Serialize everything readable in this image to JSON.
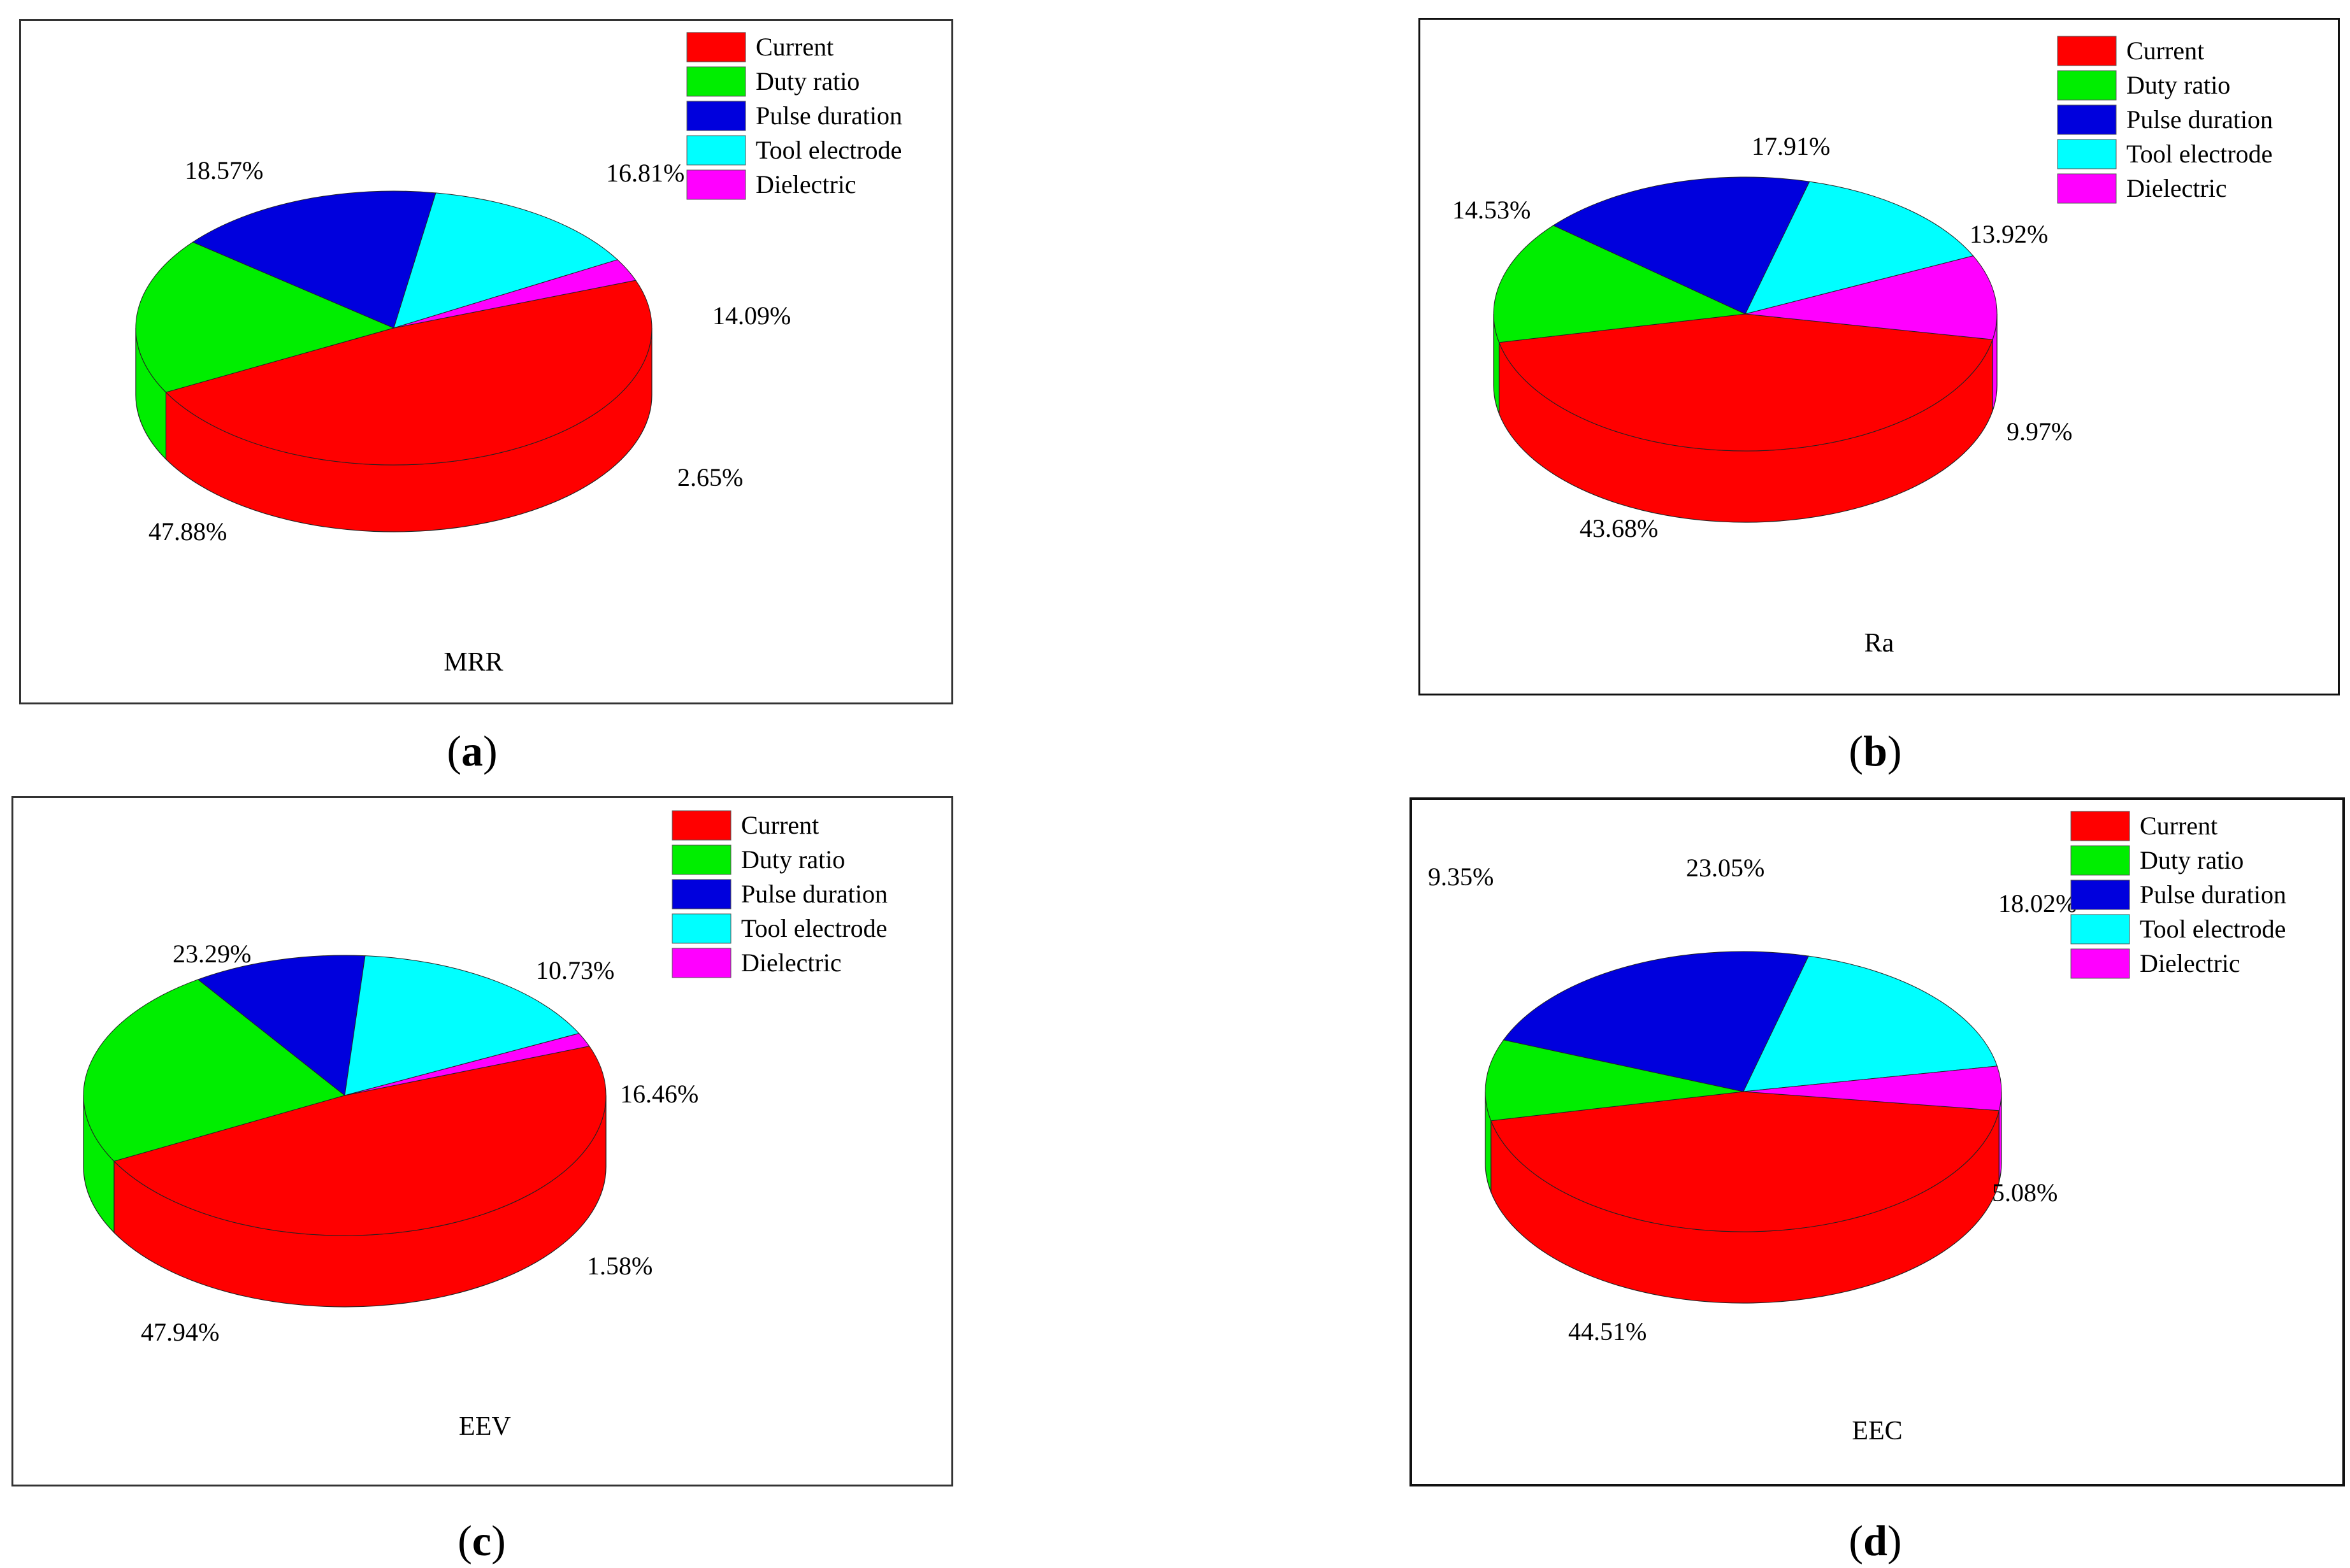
{
  "legend": {
    "entries": [
      {
        "label": "Current",
        "color": "#ff0000"
      },
      {
        "label": "Duty ratio",
        "color": "#00ee00"
      },
      {
        "label": "Pulse duration",
        "color": "#0000dd"
      },
      {
        "label": "Tool electrode",
        "color": "#00ffff"
      },
      {
        "label": "Dielectric",
        "color": "#ff00ff"
      }
    ]
  },
  "chart_data": [
    {
      "type": "pie",
      "panel": "a",
      "title": "MRR",
      "categories": [
        "Current",
        "Duty ratio",
        "Pulse duration",
        "Tool electrode",
        "Dielectric"
      ],
      "values": [
        47.88,
        18.57,
        16.81,
        14.09,
        2.65
      ],
      "labels": [
        "47.88%",
        "18.57%",
        "16.81%",
        "14.09%",
        "2.65%"
      ],
      "colors": [
        "#ff0000",
        "#00ee00",
        "#0000dd",
        "#00ffff",
        "#ff00ff"
      ],
      "legend_position": "top-right"
    },
    {
      "type": "pie",
      "panel": "b",
      "title": "Ra",
      "categories": [
        "Current",
        "Duty ratio",
        "Pulse duration",
        "Tool electrode",
        "Dielectric"
      ],
      "values": [
        43.68,
        14.53,
        17.91,
        13.92,
        9.97
      ],
      "labels": [
        "43.68%",
        "14.53%",
        "17.91%",
        "13.92%",
        "9.97%"
      ],
      "colors": [
        "#ff0000",
        "#00ee00",
        "#0000dd",
        "#00ffff",
        "#ff00ff"
      ],
      "legend_position": "top-right"
    },
    {
      "type": "pie",
      "panel": "c",
      "title": "EEV",
      "categories": [
        "Current",
        "Duty ratio",
        "Pulse duration",
        "Tool electrode",
        "Dielectric"
      ],
      "values": [
        47.94,
        23.29,
        10.73,
        16.46,
        1.58
      ],
      "labels": [
        "47.94%",
        "23.29%",
        "10.73%",
        "16.46%",
        "1.58%"
      ],
      "colors": [
        "#ff0000",
        "#00ee00",
        "#0000dd",
        "#00ffff",
        "#ff00ff"
      ],
      "legend_position": "top-right"
    },
    {
      "type": "pie",
      "panel": "d",
      "title": "EEC",
      "categories": [
        "Current",
        "Duty ratio",
        "Pulse duration",
        "Tool electrode",
        "Dielectric"
      ],
      "values": [
        44.51,
        9.35,
        23.05,
        18.02,
        5.08
      ],
      "labels": [
        "44.51%",
        "9.35%",
        "23.05%",
        "18.02%",
        "5.08%"
      ],
      "colors": [
        "#ff0000",
        "#00ee00",
        "#0000dd",
        "#00ffff",
        "#ff00ff"
      ],
      "legend_position": "top-right"
    }
  ],
  "captions": [
    {
      "open": "(",
      "letter": "a",
      "close": ")"
    },
    {
      "open": "(",
      "letter": "b",
      "close": ")"
    },
    {
      "open": "(",
      "letter": "c",
      "close": ")"
    },
    {
      "open": "(",
      "letter": "d",
      "close": ")"
    }
  ]
}
